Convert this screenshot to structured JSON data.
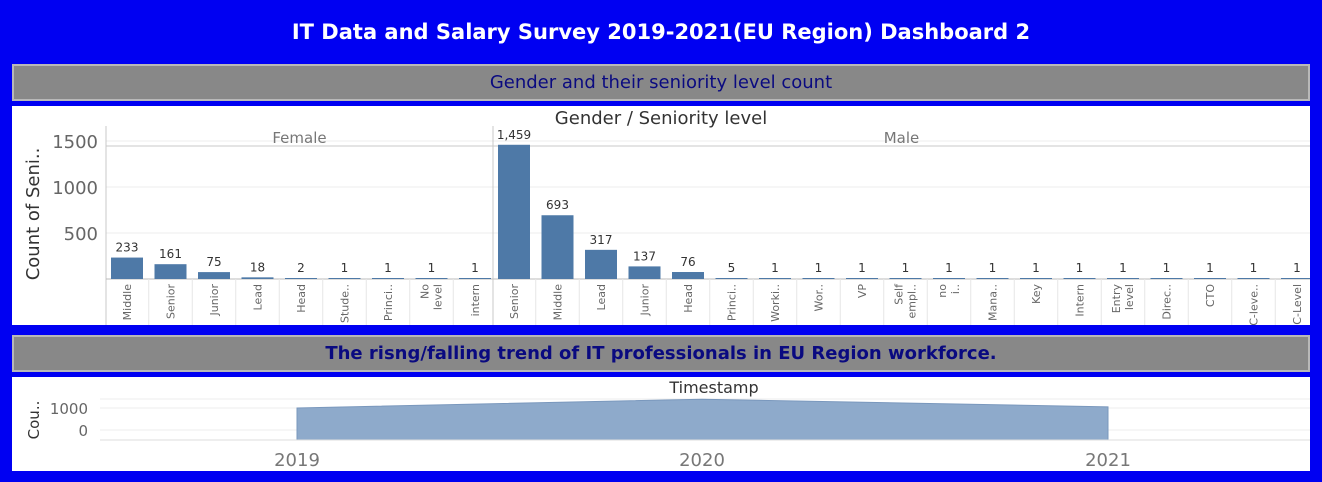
{
  "page": {
    "title": "IT Data and Salary Survey 2019-2021(EU Region) Dashboard 2",
    "section1_header": "Gender and their seniority level count",
    "section2_header": "The risng/falling trend of IT professionals in EU Region workforce."
  },
  "chart_data": [
    {
      "type": "bar",
      "title": "Gender  /  Seniority level",
      "ylabel": "Count of Seni..",
      "yticks": [
        "500",
        "1000",
        "1500"
      ],
      "ylim": [
        0,
        1780
      ],
      "color": "#4e79a7",
      "gridlines": true,
      "panels": [
        {
          "name": "Female",
          "categories": [
            "Middle",
            "Senior",
            "Junior",
            "Lead",
            "Head",
            "Stude..",
            "Princi..",
            "No level",
            "intern"
          ],
          "values": [
            233,
            161,
            75,
            18,
            2,
            1,
            1,
            1,
            1
          ],
          "labels": [
            "233",
            "161",
            "75",
            "18",
            "2",
            "1",
            "1",
            "1",
            "1"
          ]
        },
        {
          "name": "Male",
          "categories": [
            "Senior",
            "Middle",
            "Lead",
            "Junior",
            "Head",
            "Princi..",
            "Worki..",
            "Wor..",
            "VP",
            "Self empl..",
            "no i..",
            "Mana..",
            "Key",
            "Intern",
            "Entry level",
            "Direc..",
            "CTO",
            "C-leve..",
            "C-Level"
          ],
          "values": [
            1459,
            693,
            317,
            137,
            76,
            5,
            1,
            1,
            1,
            1,
            1,
            1,
            1,
            1,
            1,
            1,
            1,
            1,
            1
          ],
          "labels": [
            "1,459",
            "693",
            "317",
            "137",
            "76",
            "5",
            "1",
            "1",
            "1",
            "1",
            "1",
            "1",
            "1",
            "1",
            "1",
            "1",
            "1",
            "1",
            "1"
          ]
        }
      ]
    },
    {
      "type": "area",
      "title": "Timestamp",
      "ylabel": "Cou..",
      "yticks": [
        "0",
        "1000"
      ],
      "ylim": [
        -850,
        1400
      ],
      "color": "#8eaacb",
      "gridlines": true,
      "x": [
        "2019",
        "2020",
        "2021"
      ],
      "values": [
        1000,
        1400,
        1050
      ]
    }
  ]
}
